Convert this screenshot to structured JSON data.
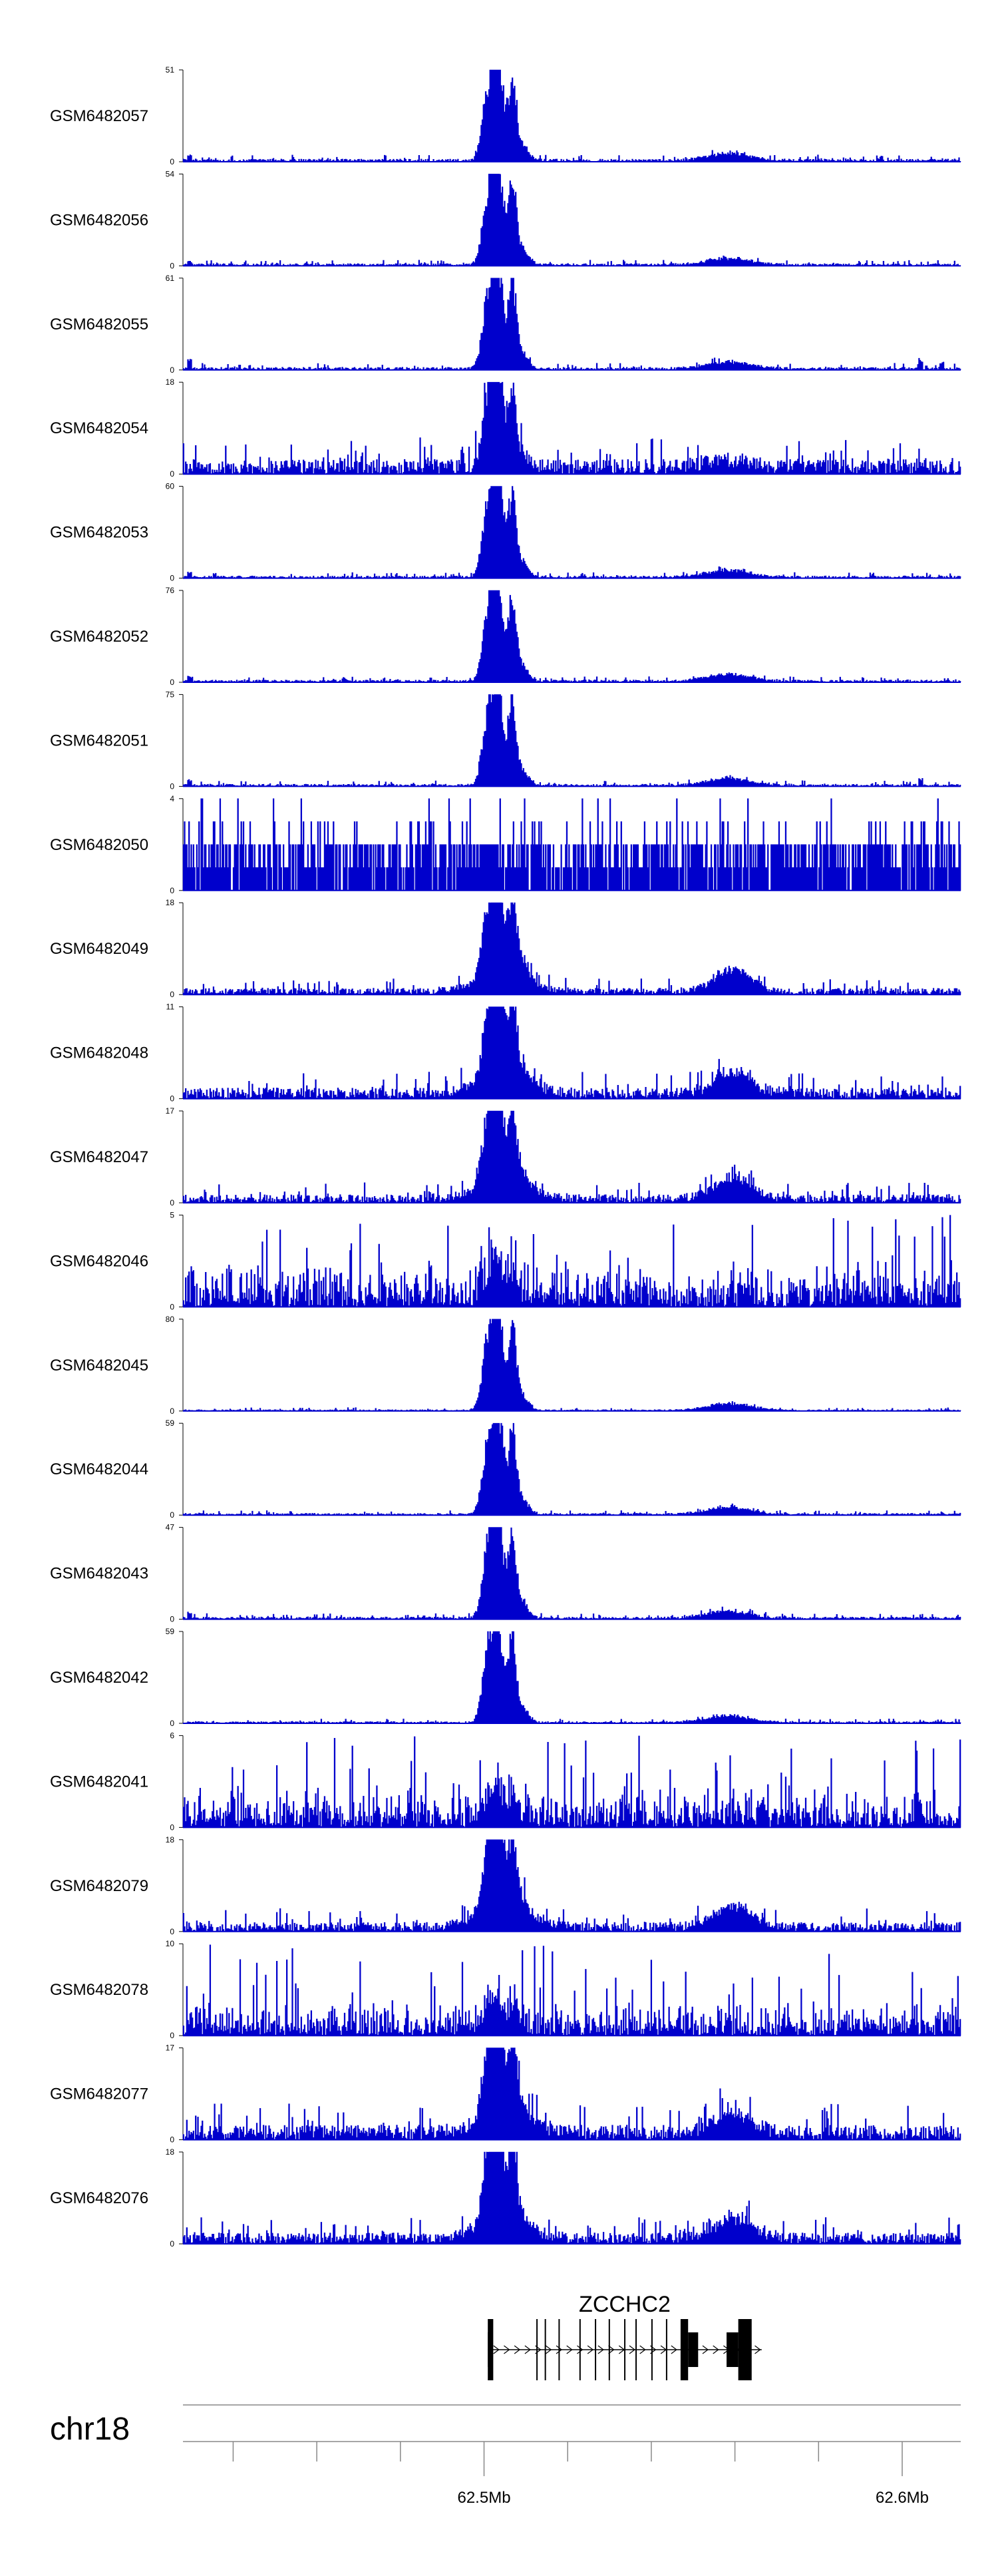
{
  "chart_data": {
    "type": "area",
    "chromosome": "chr18",
    "region": [
      62.428,
      62.614
    ],
    "color": "#0000cc",
    "tracks": [
      {
        "name": "GSM6482057",
        "max": 51,
        "profile": "peak",
        "noise": 0.03,
        "rois": [
          [
            62.4295,
            0.07
          ],
          [
            62.5055,
            0.08
          ],
          [
            62.595,
            0.06
          ]
        ]
      },
      {
        "name": "GSM6482056",
        "max": 54,
        "profile": "peak",
        "noise": 0.025,
        "rois": [
          [
            62.4295,
            0.05
          ]
        ]
      },
      {
        "name": "GSM6482055",
        "max": 61,
        "profile": "peak",
        "noise": 0.03,
        "rois": [
          [
            62.4295,
            0.12
          ],
          [
            62.5055,
            0.15
          ],
          [
            62.6045,
            0.12
          ],
          [
            62.6095,
            0.08
          ]
        ]
      },
      {
        "name": "GSM6482054",
        "max": 18,
        "profile": "peak",
        "noise": 0.16,
        "rois": []
      },
      {
        "name": "GSM6482053",
        "max": 60,
        "profile": "peak",
        "noise": 0.025,
        "rois": [
          [
            62.4295,
            0.07
          ],
          [
            62.5055,
            0.08
          ]
        ]
      },
      {
        "name": "GSM6482052",
        "max": 76,
        "profile": "peak",
        "noise": 0.025,
        "rois": [
          [
            62.4295,
            0.07
          ],
          [
            62.5055,
            0.1
          ],
          [
            62.4665,
            0.05
          ]
        ]
      },
      {
        "name": "GSM6482051",
        "max": 75,
        "profile": "peak",
        "noise": 0.025,
        "rois": [
          [
            62.4295,
            0.07
          ],
          [
            62.5055,
            0.08
          ],
          [
            62.6045,
            0.08
          ]
        ]
      },
      {
        "name": "GSM6482050",
        "max": 4,
        "profile": "binary",
        "noise": 0.5,
        "rois": []
      },
      {
        "name": "GSM6482049",
        "max": 18,
        "profile": "peak2",
        "noise": 0.07,
        "rois": []
      },
      {
        "name": "GSM6482048",
        "max": 11,
        "profile": "peak2",
        "noise": 0.12,
        "rois": []
      },
      {
        "name": "GSM6482047",
        "max": 17,
        "profile": "peak2",
        "noise": 0.09,
        "rois": []
      },
      {
        "name": "GSM6482046",
        "max": 5,
        "profile": "noisy",
        "noise": 0.35,
        "rois": []
      },
      {
        "name": "GSM6482045",
        "max": 80,
        "profile": "peak",
        "noise": 0.015,
        "rois": []
      },
      {
        "name": "GSM6482044",
        "max": 59,
        "profile": "peak",
        "noise": 0.02,
        "rois": []
      },
      {
        "name": "GSM6482043",
        "max": 47,
        "profile": "peak",
        "noise": 0.025,
        "rois": [
          [
            62.4295,
            0.08
          ]
        ]
      },
      {
        "name": "GSM6482042",
        "max": 59,
        "profile": "peak",
        "noise": 0.02,
        "rois": []
      },
      {
        "name": "GSM6482041",
        "max": 6,
        "profile": "noisy",
        "noise": 0.3,
        "rois": []
      },
      {
        "name": "GSM6482079",
        "max": 18,
        "profile": "peak2",
        "noise": 0.1,
        "rois": []
      },
      {
        "name": "GSM6482078",
        "max": 10,
        "profile": "noisy",
        "noise": 0.25,
        "rois": []
      },
      {
        "name": "GSM6482077",
        "max": 17,
        "profile": "peak2",
        "noise": 0.16,
        "rois": []
      },
      {
        "name": "GSM6482076",
        "max": 18,
        "profile": "peak2",
        "noise": 0.12,
        "rois": []
      }
    ],
    "gene": {
      "name": "ZCCHC2",
      "start": 62.5009,
      "end": 62.5664,
      "strand": "+",
      "exons": [
        [
          62.5009,
          62.5022,
          "tall"
        ],
        [
          62.5009,
          62.5016,
          "mid"
        ],
        [
          62.5125,
          62.5128,
          "thin"
        ],
        [
          62.5145,
          62.5148,
          "thin"
        ],
        [
          62.5178,
          62.5181,
          "thin"
        ],
        [
          62.5228,
          62.5231,
          "thin"
        ],
        [
          62.5265,
          62.5268,
          "thin"
        ],
        [
          62.5298,
          62.5301,
          "thin"
        ],
        [
          62.5335,
          62.5338,
          "thin"
        ],
        [
          62.5362,
          62.5365,
          "thin"
        ],
        [
          62.54,
          62.5403,
          "thin"
        ],
        [
          62.5435,
          62.5438,
          "thin"
        ],
        [
          62.547,
          62.5488,
          "tall"
        ],
        [
          62.5488,
          62.5512,
          "mid"
        ],
        [
          62.558,
          62.5608,
          "mid"
        ],
        [
          62.5608,
          62.564,
          "tall"
        ]
      ]
    },
    "axis": {
      "major_ticks": [
        62.5,
        62.6
      ],
      "major_labels": [
        "62.5Mb",
        "62.6Mb"
      ],
      "minor_ticks": [
        62.44,
        62.46,
        62.48,
        62.52,
        62.54,
        62.56,
        62.58
      ]
    }
  }
}
